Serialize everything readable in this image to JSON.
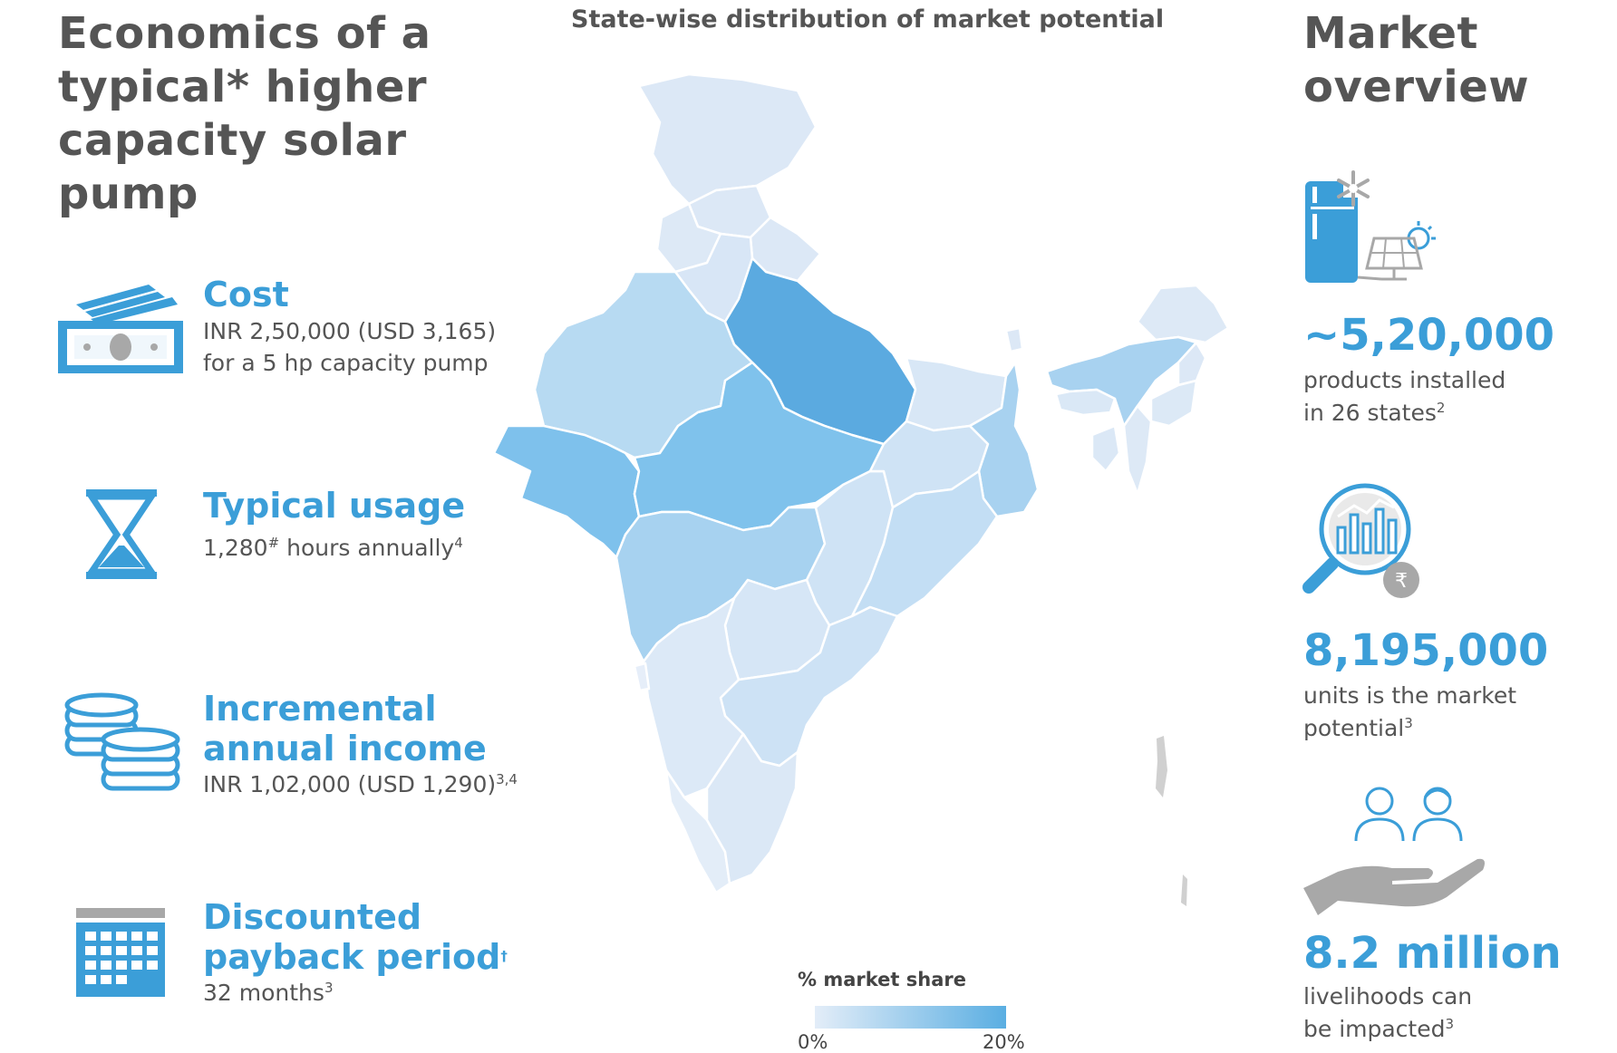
{
  "left": {
    "title": "Economics of a\ntypical* higher\ncapacity solar pump",
    "items": [
      {
        "heading": "Cost",
        "lines": [
          "INR 2,50,000 (USD 3,165)",
          "for a 5 hp capacity pump"
        ],
        "icon": "cash-icon"
      },
      {
        "heading": "Typical usage",
        "text": "1,280",
        "sup1": "#",
        "text2": " hours annually",
        "sup2": "4",
        "icon": "hourglass-icon"
      },
      {
        "heading_lines": [
          "Incremental",
          "annual income"
        ],
        "text": "INR 1,02,000 (USD 1,290)",
        "sup": "3,4",
        "icon": "coins-icon"
      },
      {
        "heading_lines": [
          "Discounted",
          "payback period"
        ],
        "heading_sup": "†",
        "text": "32 months",
        "sup": "3",
        "icon": "calendar-icon"
      }
    ]
  },
  "map": {
    "title": "State-wise distribution of market potential",
    "legend_title": "% market share",
    "legend_min": "0%",
    "legend_max": "20%",
    "color_low": "#e3edf8",
    "color_high": "#5aaee2"
  },
  "right": {
    "title": "Market\noverview",
    "stats": [
      {
        "value": "~5,20,000",
        "lines": [
          "products installed",
          "in 26 states"
        ],
        "sup": "2",
        "icon": "fridge-solar-panel-icon"
      },
      {
        "value": "8,195,000",
        "lines": [
          "units is the market",
          "potential"
        ],
        "sup": "3",
        "icon": "magnifier-chart-rupee-icon"
      },
      {
        "value": "8.2 million",
        "lines": [
          "livelihoods can",
          "be impacted"
        ],
        "sup": "3",
        "icon": "people-hand-icon"
      }
    ]
  },
  "colors": {
    "accent": "#3b9ed8",
    "text": "#555555",
    "icon_grey": "#a8a8a8"
  }
}
